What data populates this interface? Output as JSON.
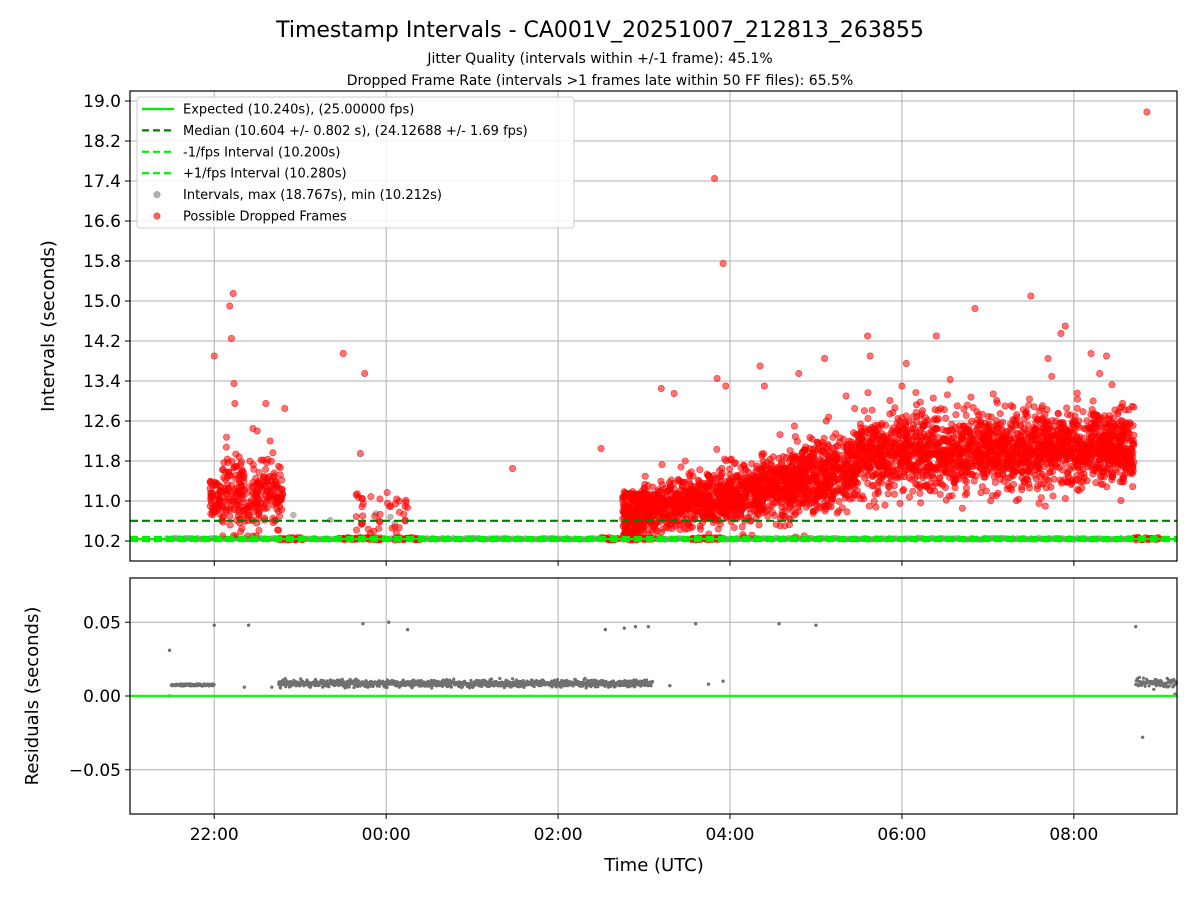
{
  "chart_data": {
    "type": "scatter",
    "title": "Timestamp Intervals - CA001V_20251007_212813_263855",
    "subtitles": [
      "Jitter Quality (intervals within +/-1 frame): 45.1%",
      "Dropped Frame Rate (intervals >1 frames late within 50 FF files): 65.5%"
    ],
    "xlabel": "Time (UTC)",
    "x_ticks": [
      {
        "h": -2,
        "label": "22:00"
      },
      {
        "h": 0,
        "label": "00:00"
      },
      {
        "h": 2,
        "label": "02:00"
      },
      {
        "h": 4,
        "label": "04:00"
      },
      {
        "h": 6,
        "label": "06:00"
      },
      {
        "h": 8,
        "label": "08:00"
      }
    ],
    "xlim": [
      -2.98,
      9.2
    ],
    "top_panel": {
      "ylabel": "Intervals (seconds)",
      "ylim": [
        9.8,
        19.2
      ],
      "y_ticks": [
        "19.0",
        "18.2",
        "17.4",
        "16.6",
        "15.8",
        "15.0",
        "14.2",
        "13.4",
        "12.6",
        "11.8",
        "11.0",
        "10.2"
      ],
      "lines": {
        "expected": 10.24,
        "median": 10.604,
        "minus_fps": 10.2,
        "plus_fps": 10.28
      },
      "legend": [
        {
          "label": "Expected (10.240s), (25.00000 fps)",
          "style": "solid",
          "color": "#00ee00"
        },
        {
          "label": "Median (10.604 +/- 0.802 s), (24.12688 +/- 1.69 fps)",
          "style": "dashed",
          "color": "#007f00"
        },
        {
          "label": "-1/fps Interval (10.200s)",
          "style": "dashed",
          "color": "#00ee00"
        },
        {
          "label": "+1/fps Interval (10.280s)",
          "style": "dashed",
          "color": "#00ee00"
        },
        {
          "label": "Intervals, max (18.767s), min (10.212s)",
          "style": "marker",
          "color": "#808080"
        },
        {
          "label": "Possible Dropped Frames",
          "style": "marker",
          "color": "#ff0000"
        }
      ],
      "outliers": [
        [
          -2.0,
          13.9
        ],
        [
          -1.82,
          14.9
        ],
        [
          -1.78,
          15.15
        ],
        [
          -1.8,
          14.25
        ],
        [
          -1.77,
          13.35
        ],
        [
          -1.76,
          12.95
        ],
        [
          -1.5,
          12.4
        ],
        [
          -1.55,
          12.45
        ],
        [
          -1.4,
          12.95
        ],
        [
          -1.35,
          12.2
        ],
        [
          -1.18,
          12.85
        ],
        [
          -0.5,
          13.95
        ],
        [
          -0.3,
          11.95
        ],
        [
          -0.25,
          13.55
        ],
        [
          -0.28,
          11.05
        ],
        [
          0.15,
          11.0
        ],
        [
          1.47,
          11.65
        ],
        [
          2.5,
          12.05
        ],
        [
          3.2,
          13.25
        ],
        [
          3.35,
          13.15
        ],
        [
          3.82,
          17.45
        ],
        [
          3.92,
          15.75
        ],
        [
          3.85,
          13.45
        ],
        [
          3.95,
          13.3
        ],
        [
          4.05,
          11.75
        ],
        [
          4.35,
          13.7
        ],
        [
          4.4,
          13.3
        ],
        [
          4.75,
          12.5
        ],
        [
          4.8,
          13.55
        ],
        [
          5.1,
          13.85
        ],
        [
          5.12,
          12.6
        ],
        [
          5.35,
          13.1
        ],
        [
          5.45,
          12.85
        ],
        [
          5.6,
          14.3
        ],
        [
          5.63,
          13.9
        ],
        [
          6.0,
          13.3
        ],
        [
          6.05,
          13.75
        ],
        [
          6.4,
          14.3
        ],
        [
          6.85,
          14.85
        ],
        [
          7.2,
          12.9
        ],
        [
          7.5,
          15.1
        ],
        [
          7.6,
          12.8
        ],
        [
          7.7,
          13.85
        ],
        [
          7.85,
          14.35
        ],
        [
          7.9,
          14.5
        ],
        [
          8.2,
          13.95
        ],
        [
          8.3,
          13.55
        ],
        [
          8.38,
          13.9
        ],
        [
          8.52,
          12.55
        ],
        [
          8.85,
          18.78
        ]
      ]
    },
    "bottom_panel": {
      "ylabel": "Residuals (seconds)",
      "ylim": [
        -0.08,
        0.08
      ],
      "y_ticks": [
        {
          "v": 0.05,
          "label": "0.05"
        },
        {
          "v": 0.0,
          "label": "0.00"
        },
        {
          "v": -0.05,
          "label": "−0.05"
        }
      ],
      "zero_line": 0.0,
      "outliers": [
        [
          -2.52,
          0.031
        ],
        [
          -2.52,
          0.0
        ],
        [
          -2.0,
          0.048
        ],
        [
          -1.6,
          0.048
        ],
        [
          -1.65,
          0.006
        ],
        [
          -2.02,
          0.007
        ],
        [
          -1.33,
          0.006
        ],
        [
          -0.27,
          0.049
        ],
        [
          0.03,
          0.05
        ],
        [
          0.25,
          0.045
        ],
        [
          2.55,
          0.045
        ],
        [
          2.77,
          0.046
        ],
        [
          2.9,
          0.047
        ],
        [
          3.05,
          0.047
        ],
        [
          3.6,
          0.049
        ],
        [
          3.3,
          0.007
        ],
        [
          3.75,
          0.008
        ],
        [
          3.92,
          0.01
        ],
        [
          4.57,
          0.049
        ],
        [
          5.0,
          0.048
        ],
        [
          8.72,
          0.047
        ],
        [
          8.8,
          -0.028
        ]
      ]
    }
  }
}
